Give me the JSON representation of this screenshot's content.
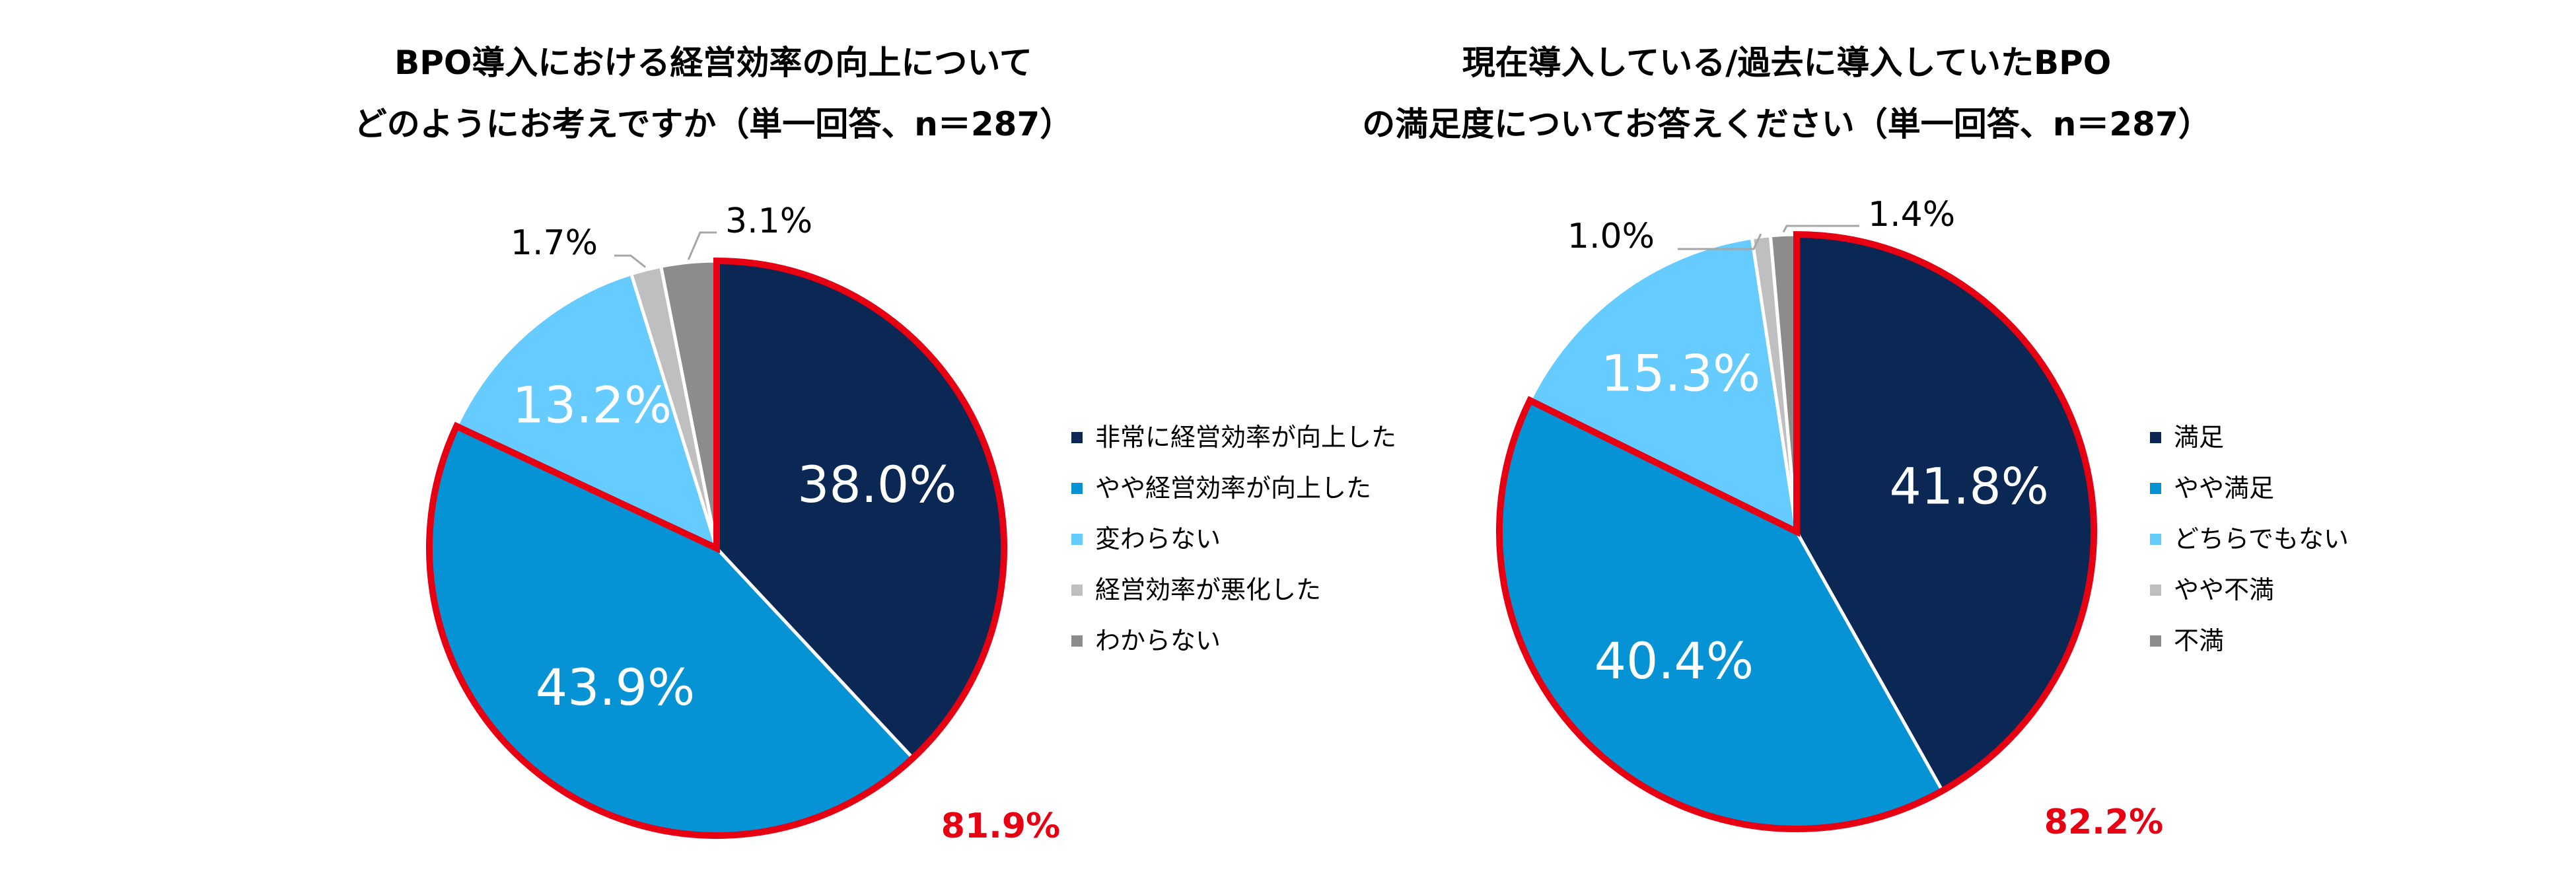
{
  "chart_data": [
    {
      "type": "pie",
      "title_lines": [
        "BPO導入における経営効率の向上について",
        "どのようにお考えですか（単一回答、n＝287）"
      ],
      "categories": [
        "非常に経営効率が向上した",
        "やや経営効率が向上した",
        "変わらない",
        "経営効率が悪化した",
        "わからない"
      ],
      "values": [
        38.0,
        43.9,
        13.2,
        1.7,
        3.1
      ],
      "labels": [
        "38.0%",
        "43.9%",
        "13.2%",
        "1.7%",
        "3.1%"
      ],
      "colors": [
        "#0a2853",
        "#0593d6",
        "#66ccff",
        "#bfbfbf",
        "#8c8c8c"
      ],
      "highlight_total": "81.9%",
      "highlight_color": "#e60012",
      "legend_position": "right"
    },
    {
      "type": "pie",
      "title_lines": [
        "現在導入している/過去に導入していたBPO",
        "の満足度についてお答えください（単一回答、n＝287）"
      ],
      "categories": [
        "満足",
        "やや満足",
        "どちらでもない",
        "やや不満",
        "不満"
      ],
      "values": [
        41.8,
        40.4,
        15.3,
        1.0,
        1.4
      ],
      "labels": [
        "41.8%",
        "40.4%",
        "15.3%",
        "1.0%",
        "1.4%"
      ],
      "colors": [
        "#0a2853",
        "#0593d6",
        "#66ccff",
        "#bfbfbf",
        "#8c8c8c"
      ],
      "highlight_total": "82.2%",
      "highlight_color": "#e60012",
      "legend_position": "right"
    }
  ]
}
